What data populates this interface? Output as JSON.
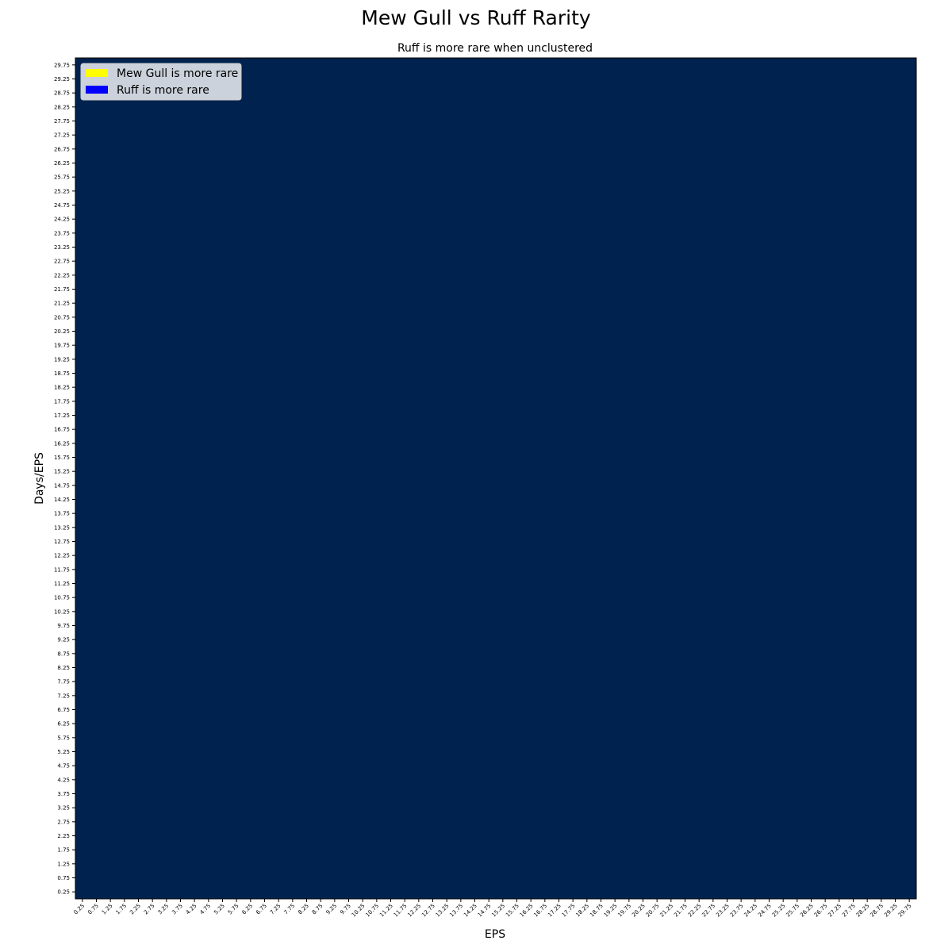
{
  "chart_data": {
    "type": "heatmap",
    "title": "Mew Gull vs Ruff Rarity",
    "subtitle": "Ruff is more rare when unclustered",
    "xlabel": "EPS",
    "ylabel": "Days/EPS",
    "x_ticks": [
      "0.25",
      "0.75",
      "1.25",
      "1.75",
      "2.25",
      "2.75",
      "3.25",
      "3.75",
      "4.25",
      "4.75",
      "5.25",
      "5.75",
      "6.25",
      "6.75",
      "7.25",
      "7.75",
      "8.25",
      "8.75",
      "9.25",
      "9.75",
      "10.25",
      "10.75",
      "11.25",
      "11.75",
      "12.25",
      "12.75",
      "13.25",
      "13.75",
      "14.25",
      "14.75",
      "15.25",
      "15.75",
      "16.25",
      "16.75",
      "17.25",
      "17.75",
      "18.25",
      "18.75",
      "19.25",
      "19.75",
      "20.25",
      "20.75",
      "21.25",
      "21.75",
      "22.25",
      "22.75",
      "23.25",
      "23.75",
      "24.25",
      "24.75",
      "25.25",
      "25.75",
      "26.25",
      "26.75",
      "27.25",
      "27.75",
      "28.25",
      "28.75",
      "29.25",
      "29.75"
    ],
    "y_ticks": [
      "0.25",
      "0.75",
      "1.25",
      "1.75",
      "2.25",
      "2.75",
      "3.25",
      "3.75",
      "4.25",
      "4.75",
      "5.25",
      "5.75",
      "6.25",
      "6.75",
      "7.25",
      "7.75",
      "8.25",
      "8.75",
      "9.25",
      "9.75",
      "10.25",
      "10.75",
      "11.25",
      "11.75",
      "12.25",
      "12.75",
      "13.25",
      "13.75",
      "14.25",
      "14.75",
      "15.25",
      "15.75",
      "16.25",
      "16.75",
      "17.25",
      "17.75",
      "18.25",
      "18.75",
      "19.25",
      "19.75",
      "20.25",
      "20.75",
      "21.25",
      "21.75",
      "22.25",
      "22.75",
      "23.25",
      "23.75",
      "24.25",
      "24.75",
      "25.25",
      "25.75",
      "26.25",
      "26.75",
      "27.25",
      "27.75",
      "28.25",
      "28.75",
      "29.25",
      "29.75"
    ],
    "x_range": [
      0,
      30
    ],
    "y_range": [
      0,
      30
    ],
    "cell_size": 0.5,
    "fill_value": "Ruff is more rare",
    "fill_color": "#00224e",
    "legend": {
      "placement": "top-left",
      "entries": [
        {
          "label": "Mew Gull is more rare",
          "color": "#ffff00"
        },
        {
          "label": "Ruff is more rare",
          "color": "#0000ff"
        }
      ]
    },
    "grid": false
  }
}
